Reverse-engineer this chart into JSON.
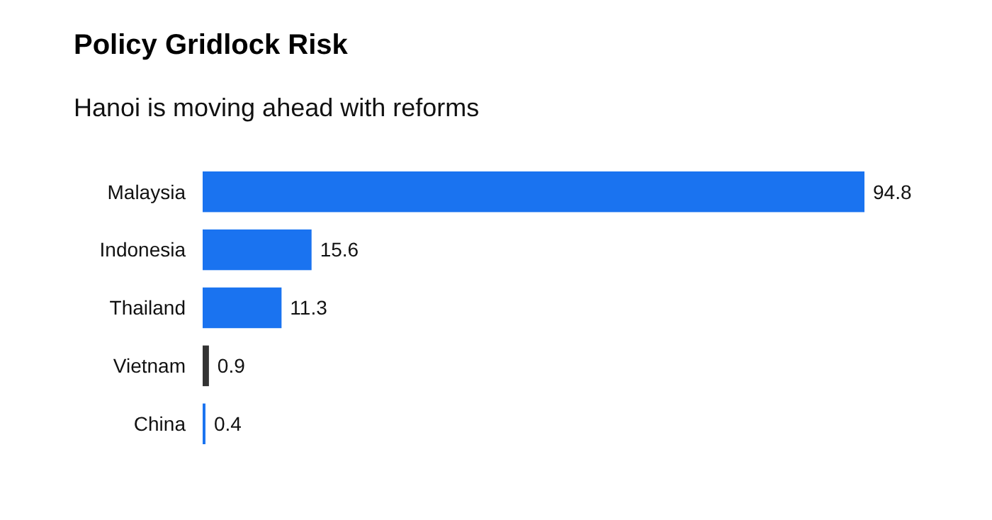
{
  "chart_data": {
    "type": "bar",
    "orientation": "horizontal",
    "title": "Policy Gridlock Risk",
    "subtitle": "Hanoi is moving ahead with reforms",
    "categories": [
      "Malaysia",
      "Indonesia",
      "Thailand",
      "Vietnam",
      "China"
    ],
    "values": [
      94.8,
      15.6,
      11.3,
      0.9,
      0.4
    ],
    "colors": [
      "#1a73f0",
      "#1a73f0",
      "#1a73f0",
      "#333333",
      "#1a73f0"
    ],
    "data_labels": true
  }
}
